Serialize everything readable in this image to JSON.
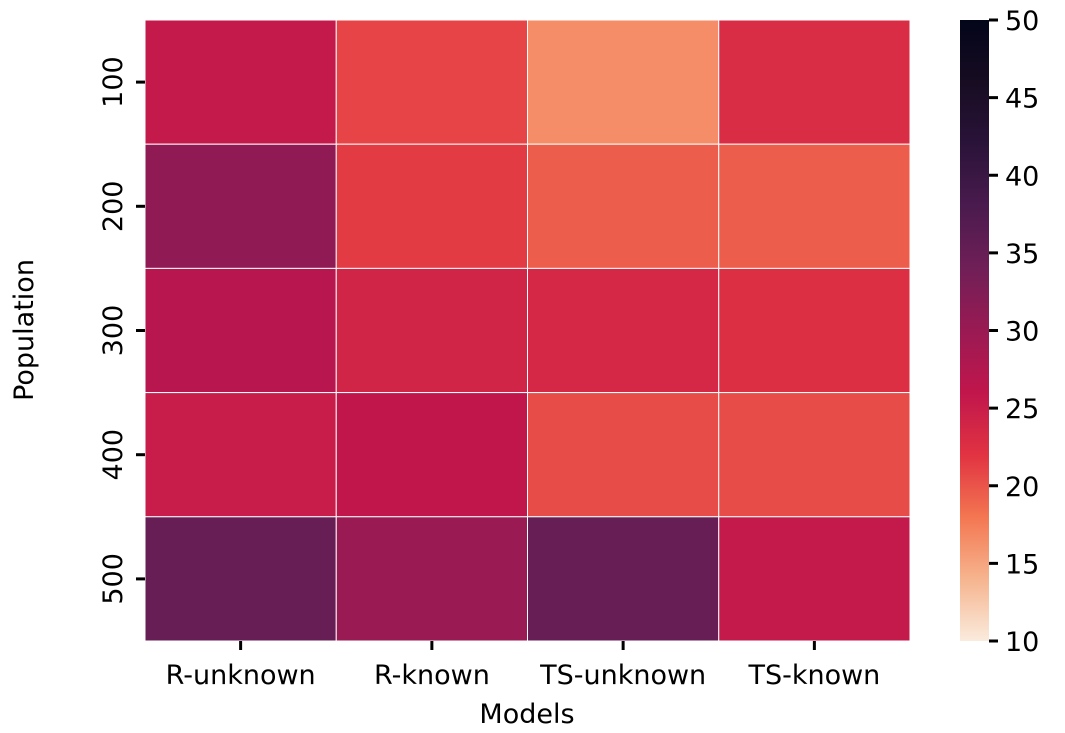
{
  "chart_data": {
    "type": "heatmap",
    "title": "",
    "xlabel": "Models",
    "ylabel": "Population",
    "x_categories": [
      "R-unknown",
      "R-known",
      "TS-unknown",
      "TS-known"
    ],
    "y_categories": [
      "100",
      "200",
      "300",
      "400",
      "500"
    ],
    "values": [
      [
        25.5,
        21.0,
        16.5,
        23.0
      ],
      [
        31.0,
        21.5,
        19.5,
        19.5
      ],
      [
        27.0,
        24.0,
        23.5,
        22.5
      ],
      [
        25.0,
        26.0,
        20.5,
        20.5
      ],
      [
        35.0,
        30.0,
        35.0,
        25.5
      ]
    ],
    "colorbar": {
      "range": [
        10,
        50
      ],
      "ticks": [
        "10",
        "15",
        "20",
        "25",
        "30",
        "35",
        "40",
        "45",
        "50"
      ]
    },
    "colormap": "rocket_r",
    "grid": false,
    "cell_border_color": "#ffffff"
  }
}
